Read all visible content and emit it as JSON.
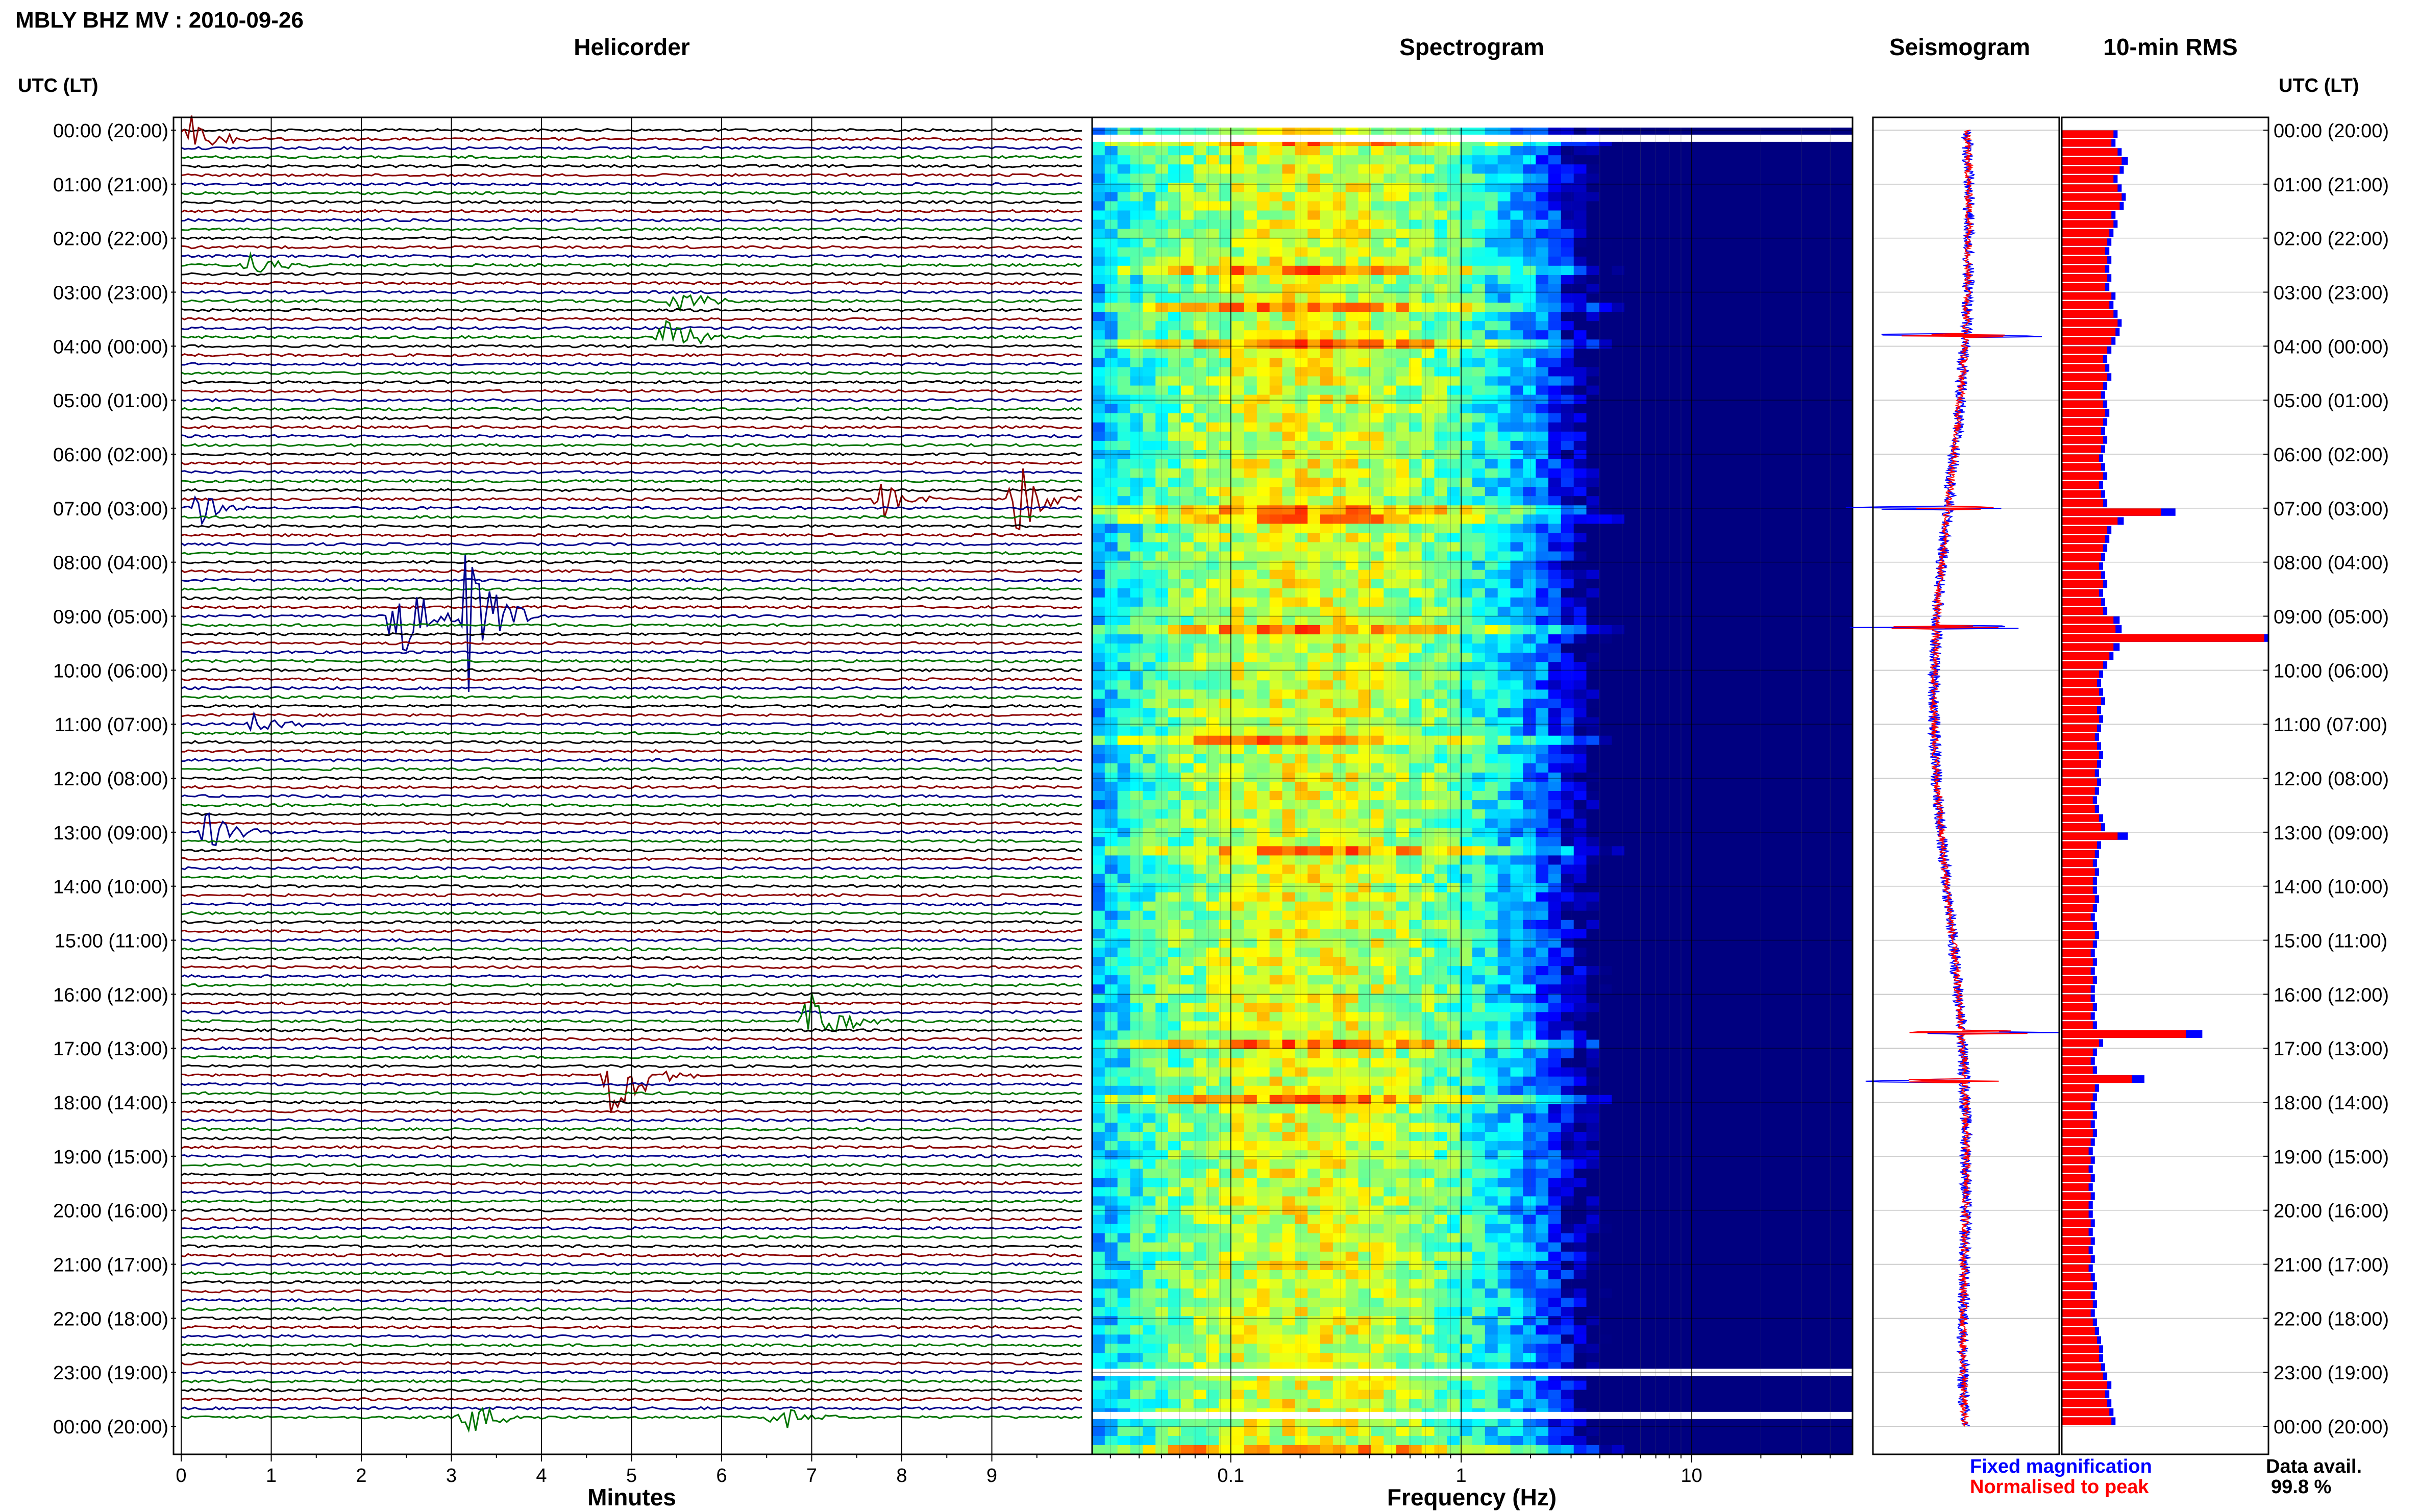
{
  "page": {
    "title": "MBLY BHZ MV : 2010-09-26",
    "utc_label_left": "UTC (LT)",
    "utc_label_right": "UTC (LT)"
  },
  "panels": {
    "helicorder_title": "Helicorder",
    "spectrogram_title": "Spectrogram",
    "seismogram_title": "Seismogram",
    "rms_title": "10-min RMS"
  },
  "legend": {
    "fixed": "Fixed magnification",
    "normalised": "Normalised to peak",
    "data_avail_label": "Data avail.",
    "data_avail_value": "99.8 %"
  },
  "colors": {
    "trace_cycle": [
      "#000000",
      "#8b0000",
      "#00008b",
      "#007400"
    ],
    "fixed": "#0000ff",
    "normalised": "#ff0000"
  },
  "chart_data": [
    {
      "type": "line",
      "name": "helicorder",
      "title": "Helicorder",
      "xlabel": "Minutes",
      "ylabel": "UTC (LT)",
      "x_ticks": [
        "0",
        "1",
        "2",
        "3",
        "4",
        "5",
        "6",
        "7",
        "8",
        "9"
      ],
      "xlim": [
        0,
        10
      ],
      "row_labels": [
        "00:00 (20:00)",
        "01:00 (21:00)",
        "02:00 (22:00)",
        "03:00 (23:00)",
        "04:00 (00:00)",
        "05:00 (01:00)",
        "06:00 (02:00)",
        "07:00 (03:00)",
        "08:00 (04:00)",
        "09:00 (05:00)",
        "10:00 (06:00)",
        "11:00 (07:00)",
        "12:00 (08:00)",
        "13:00 (09:00)",
        "14:00 (10:00)",
        "15:00 (11:00)",
        "16:00 (12:00)",
        "17:00 (13:00)",
        "18:00 (14:00)",
        "19:00 (15:00)",
        "20:00 (16:00)",
        "21:00 (17:00)",
        "22:00 (18:00)",
        "23:00 (19:00)",
        "00:00 (20:00)"
      ],
      "trace_count": 144,
      "events": [
        {
          "hour": 0.1,
          "minute": 0.1,
          "amp": 1.4
        },
        {
          "hour": 2.5,
          "minute": 0.8,
          "amp": 0.8
        },
        {
          "hour": 3.1,
          "minute": 5.5,
          "amp": 0.9
        },
        {
          "hour": 3.8,
          "minute": 5.4,
          "amp": 1.1
        },
        {
          "hour": 6.8,
          "minute": 7.8,
          "amp": 1.0
        },
        {
          "hour": 6.9,
          "minute": 9.3,
          "amp": 2.0
        },
        {
          "hour": 7.0,
          "minute": 0.2,
          "amp": 0.9
        },
        {
          "hour": 9.0,
          "minute": 2.4,
          "amp": 3.0
        },
        {
          "hour": 9.0,
          "minute": 3.2,
          "amp": 4.5
        },
        {
          "hour": 11.0,
          "minute": 0.8,
          "amp": 0.6
        },
        {
          "hour": 13.0,
          "minute": 0.3,
          "amp": 1.0
        },
        {
          "hour": 16.5,
          "minute": 7.0,
          "amp": 1.8
        },
        {
          "hour": 17.5,
          "minute": 4.8,
          "amp": 3.0
        },
        {
          "hour": 23.8,
          "minute": 3.2,
          "amp": 1.0
        },
        {
          "hour": 23.8,
          "minute": 6.6,
          "amp": 0.8
        }
      ]
    },
    {
      "type": "heatmap",
      "name": "spectrogram",
      "title": "Spectrogram",
      "xlabel": "Frequency (Hz)",
      "x_scale": "log",
      "xlim": [
        0.025,
        50
      ],
      "x_ticks": [
        "0.1",
        "1",
        "10"
      ],
      "colormap": "jet",
      "data_gaps_hour": [
        0.15,
        23.0,
        23.8
      ]
    },
    {
      "type": "line",
      "name": "seismogram",
      "title": "Seismogram",
      "series": [
        "Fixed magnification",
        "Normalised to peak"
      ],
      "spikes_hour": [
        3.8,
        7.0,
        9.2,
        16.7,
        17.6
      ]
    },
    {
      "type": "bar",
      "name": "rms",
      "title": "10-min RMS",
      "series": [
        {
          "name": "Fixed magnification",
          "values": [
            0.27,
            0.26,
            0.29,
            0.32,
            0.3,
            0.27,
            0.29,
            0.31,
            0.3,
            0.26,
            0.27,
            0.25,
            0.24,
            0.23,
            0.24,
            0.23,
            0.24,
            0.23,
            0.26,
            0.25,
            0.27,
            0.29,
            0.28,
            0.26,
            0.24,
            0.22,
            0.23,
            0.24,
            0.22,
            0.21,
            0.22,
            0.23,
            0.22,
            0.21,
            0.22,
            0.21,
            0.2,
            0.21,
            0.22,
            0.2,
            0.21,
            0.22,
            0.55,
            0.3,
            0.24,
            0.23,
            0.22,
            0.21,
            0.2,
            0.21,
            0.22,
            0.2,
            0.21,
            0.22,
            0.28,
            0.29,
            1.0,
            0.28,
            0.25,
            0.22,
            0.2,
            0.19,
            0.2,
            0.21,
            0.19,
            0.2,
            0.19,
            0.18,
            0.19,
            0.2,
            0.19,
            0.18,
            0.19,
            0.18,
            0.17,
            0.18,
            0.2,
            0.21,
            0.32,
            0.19,
            0.18,
            0.17,
            0.18,
            0.17,
            0.17,
            0.18,
            0.17,
            0.16,
            0.17,
            0.18,
            0.17,
            0.16,
            0.17,
            0.16,
            0.17,
            0.16,
            0.16,
            0.17,
            0.16,
            0.17,
            0.68,
            0.2,
            0.17,
            0.16,
            0.17,
            0.4,
            0.18,
            0.17,
            0.16,
            0.17,
            0.16,
            0.17,
            0.16,
            0.15,
            0.16,
            0.15,
            0.16,
            0.15,
            0.16,
            0.15,
            0.15,
            0.16,
            0.15,
            0.16,
            0.15,
            0.16,
            0.15,
            0.16,
            0.17,
            0.16,
            0.17,
            0.16,
            0.17,
            0.18,
            0.19,
            0.2,
            0.2,
            0.21,
            0.22,
            0.24,
            0.23,
            0.24,
            0.25,
            0.26
          ]
        },
        {
          "name": "Normalised to peak",
          "values": [
            0.25,
            0.24,
            0.27,
            0.29,
            0.28,
            0.25,
            0.27,
            0.29,
            0.28,
            0.24,
            0.25,
            0.23,
            0.22,
            0.21,
            0.22,
            0.21,
            0.22,
            0.21,
            0.24,
            0.23,
            0.25,
            0.27,
            0.26,
            0.24,
            0.22,
            0.2,
            0.21,
            0.22,
            0.2,
            0.19,
            0.2,
            0.21,
            0.2,
            0.19,
            0.2,
            0.19,
            0.18,
            0.19,
            0.2,
            0.18,
            0.19,
            0.2,
            0.48,
            0.27,
            0.22,
            0.21,
            0.2,
            0.19,
            0.18,
            0.19,
            0.2,
            0.18,
            0.19,
            0.2,
            0.25,
            0.26,
            0.98,
            0.25,
            0.23,
            0.2,
            0.18,
            0.17,
            0.18,
            0.19,
            0.17,
            0.18,
            0.17,
            0.16,
            0.17,
            0.18,
            0.17,
            0.16,
            0.17,
            0.16,
            0.15,
            0.16,
            0.18,
            0.19,
            0.27,
            0.17,
            0.16,
            0.15,
            0.16,
            0.15,
            0.15,
            0.16,
            0.15,
            0.14,
            0.15,
            0.16,
            0.15,
            0.14,
            0.15,
            0.14,
            0.15,
            0.14,
            0.14,
            0.15,
            0.14,
            0.15,
            0.6,
            0.18,
            0.15,
            0.14,
            0.15,
            0.34,
            0.16,
            0.15,
            0.14,
            0.15,
            0.14,
            0.15,
            0.14,
            0.13,
            0.14,
            0.13,
            0.14,
            0.13,
            0.14,
            0.13,
            0.13,
            0.14,
            0.13,
            0.14,
            0.13,
            0.14,
            0.13,
            0.14,
            0.15,
            0.14,
            0.15,
            0.14,
            0.15,
            0.16,
            0.17,
            0.18,
            0.18,
            0.19,
            0.2,
            0.22,
            0.21,
            0.22,
            0.23,
            0.24
          ]
        }
      ]
    }
  ]
}
